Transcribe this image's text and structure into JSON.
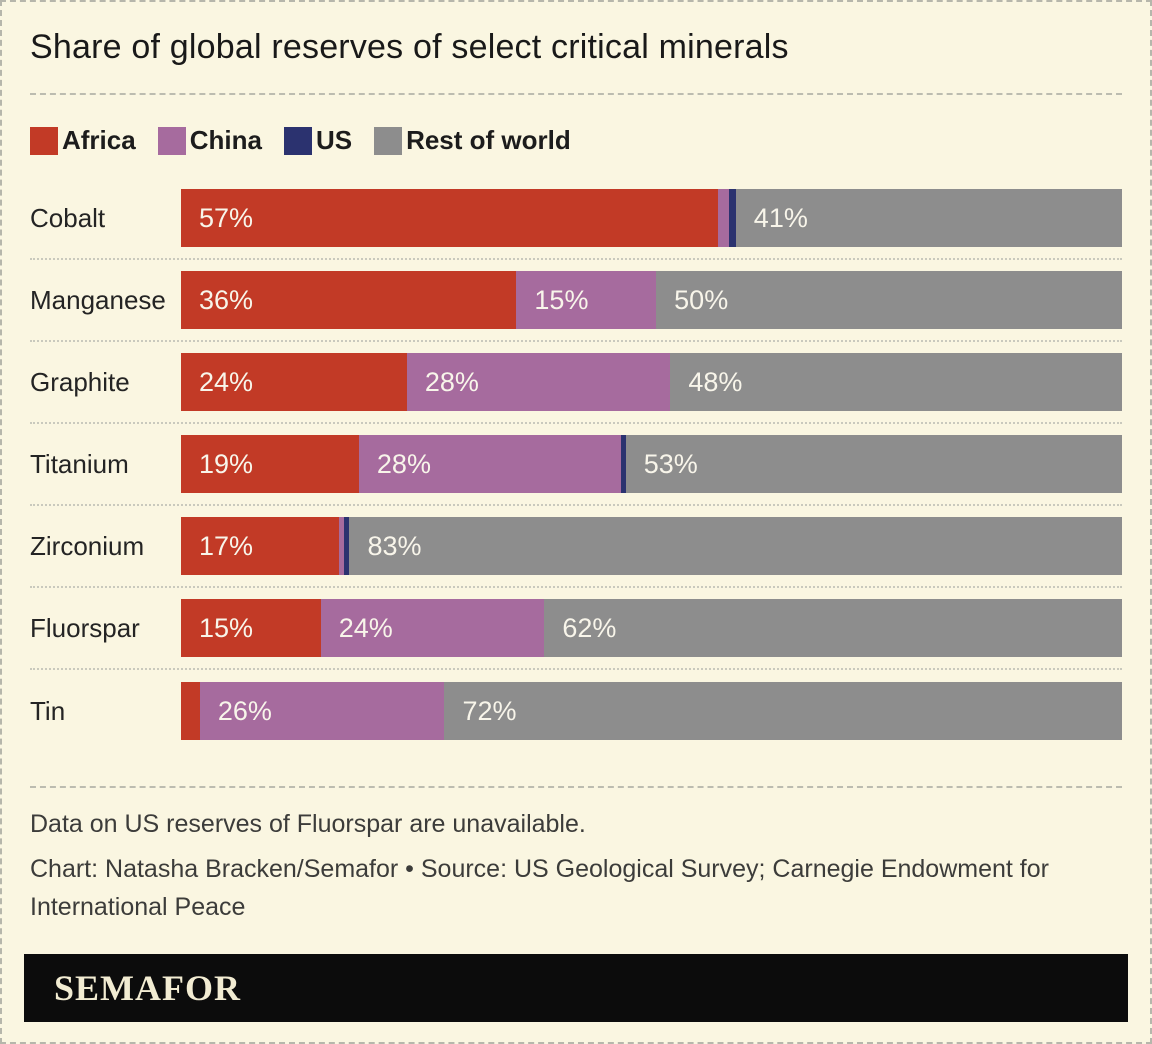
{
  "title": "Share of global reserves of select critical minerals",
  "colors": {
    "background": "#faf6e1",
    "africa": "#c23a26",
    "china": "#a66b9e",
    "us": "#2b326f",
    "rest_of_world": "#8d8d8d",
    "logo_bar": "#0c0c0c",
    "logo_text": "#f2ecd2"
  },
  "legend": {
    "items": [
      {
        "key": "africa",
        "label": "Africa",
        "color": "#c23a26"
      },
      {
        "key": "china",
        "label": "China",
        "color": "#a66b9e"
      },
      {
        "key": "us",
        "label": "US",
        "color": "#2b326f"
      },
      {
        "key": "rest-of-world",
        "label": "Rest of world",
        "color": "#8d8d8d"
      }
    ]
  },
  "chart_data": {
    "type": "bar",
    "orientation": "horizontal",
    "stacked": true,
    "unit": "percent",
    "xlim": [
      0,
      100
    ],
    "grid": false,
    "legend_position": "top",
    "categories": [
      "Cobalt",
      "Manganese",
      "Graphite",
      "Titanium",
      "Zirconium",
      "Fluorspar",
      "Tin"
    ],
    "series": [
      {
        "key": "africa",
        "name": "Africa",
        "color": "#c23a26",
        "values": [
          57,
          36,
          24,
          19,
          17,
          15,
          2
        ]
      },
      {
        "key": "china",
        "name": "China",
        "color": "#a66b9e",
        "values": [
          1.2,
          15,
          28,
          28,
          0.5,
          24,
          26
        ]
      },
      {
        "key": "us",
        "name": "US",
        "color": "#2b326f",
        "values": [
          0.7,
          0,
          0,
          0.5,
          0.6,
          null,
          0
        ]
      },
      {
        "key": "rest-of-world",
        "name": "Rest of world",
        "color": "#8d8d8d",
        "values": [
          41,
          50,
          48,
          53,
          83,
          62,
          72
        ]
      }
    ],
    "display_labels": [
      [
        "57%",
        "",
        "",
        "41%"
      ],
      [
        "36%",
        "15%",
        "",
        "50%"
      ],
      [
        "24%",
        "28%",
        "",
        "48%"
      ],
      [
        "19%",
        "28%",
        "",
        "53%"
      ],
      [
        "17%",
        "",
        "",
        "83%"
      ],
      [
        "15%",
        "24%",
        "",
        "62%"
      ],
      [
        "",
        "26%",
        "",
        "72%"
      ]
    ]
  },
  "notes": {
    "footnote": "Data on US reserves of Fluorspar are unavailable.",
    "credit": "Chart: Natasha Bracken/Semafor • Source: US Geological Survey; Carnegie Endowment for International Peace"
  },
  "logo": {
    "text": "SEMAFOR"
  }
}
